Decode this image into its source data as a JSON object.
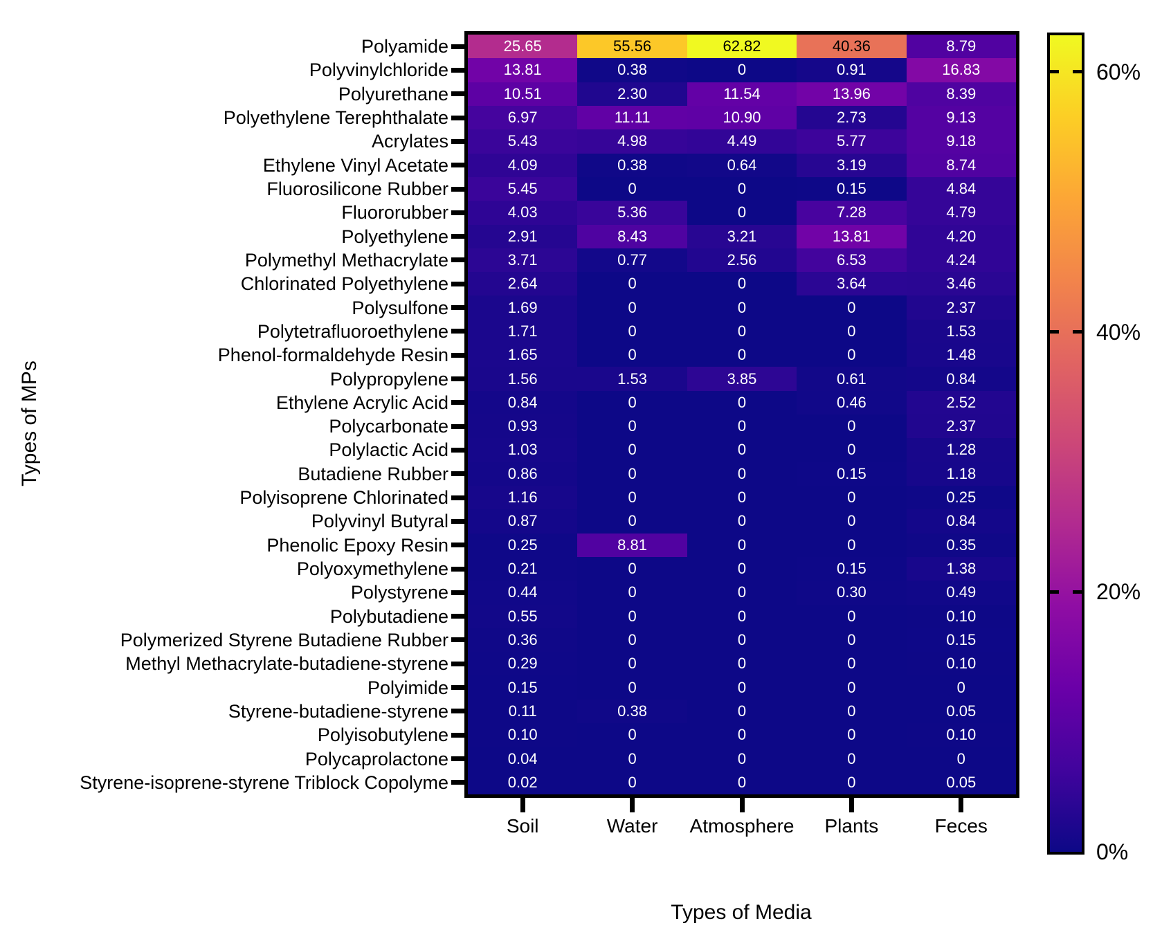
{
  "figure": {
    "x_axis_title": "Types of Media",
    "y_axis_title": "Types of MPs"
  },
  "colorbar": {
    "vmin": 0,
    "vmax": 62.82,
    "colormap": "plasma",
    "colormap_stops": [
      "#0d0887",
      "#41049d",
      "#6a00a8",
      "#8f0da4",
      "#b12a90",
      "#cc4778",
      "#e16462",
      "#f2844b",
      "#fca636",
      "#fcce25",
      "#f0f921"
    ],
    "tick_labels": [
      {
        "label": "60%",
        "value": 60
      },
      {
        "label": "40%",
        "value": 40
      },
      {
        "label": "20%",
        "value": 20
      },
      {
        "label": "0%",
        "value": 0
      }
    ]
  },
  "chart_data": {
    "type": "heatmap",
    "title": "",
    "xlabel": "Types of Media",
    "ylabel": "Types of MPs",
    "value_unit": "%",
    "color_scale": {
      "min": 0,
      "max": 62.82,
      "colormap": "plasma"
    },
    "legend_position": "right-colorbar",
    "columns": [
      "Soil",
      "Water",
      "Atmosphere",
      "Plants",
      "Feces"
    ],
    "rows": [
      "Polyamide",
      "Polyvinylchloride",
      "Polyurethane",
      "Polyethylene Terephthalate",
      "Acrylates",
      "Ethylene Vinyl Acetate",
      "Fluorosilicone Rubber",
      "Fluororubber",
      "Polyethylene",
      "Polymethyl Methacrylate",
      "Chlorinated Polyethylene",
      "Polysulfone",
      "Polytetrafluoroethylene",
      "Phenol-formaldehyde Resin",
      "Polypropylene",
      "Ethylene Acrylic Acid",
      "Polycarbonate",
      "Polylactic Acid",
      "Butadiene Rubber",
      "Polyisoprene Chlorinated",
      "Polyvinyl Butyral",
      "Phenolic Epoxy Resin",
      "Polyoxymethylene",
      "Polystyrene",
      "Polybutadiene",
      "Polymerized Styrene Butadiene Rubber",
      "Methyl Methacrylate-butadiene-styrene",
      "Polyimide",
      "Styrene-butadiene-styrene",
      "Polyisobutylene",
      "Polycaprolactone",
      "Styrene-isoprene-styrene Triblock Copolyme"
    ],
    "values": [
      [
        "25.65",
        "55.56",
        "62.82",
        "40.36",
        "8.79"
      ],
      [
        "13.81",
        "0.38",
        "0",
        "0.91",
        "16.83"
      ],
      [
        "10.51",
        "2.30",
        "11.54",
        "13.96",
        "8.39"
      ],
      [
        "6.97",
        "11.11",
        "10.90",
        "2.73",
        "9.13"
      ],
      [
        "5.43",
        "4.98",
        "4.49",
        "5.77",
        "9.18"
      ],
      [
        "4.09",
        "0.38",
        "0.64",
        "3.19",
        "8.74"
      ],
      [
        "5.45",
        "0",
        "0",
        "0.15",
        "4.84"
      ],
      [
        "4.03",
        "5.36",
        "0",
        "7.28",
        "4.79"
      ],
      [
        "2.91",
        "8.43",
        "3.21",
        "13.81",
        "4.20"
      ],
      [
        "3.71",
        "0.77",
        "2.56",
        "6.53",
        "4.24"
      ],
      [
        "2.64",
        "0",
        "0",
        "3.64",
        "3.46"
      ],
      [
        "1.69",
        "0",
        "0",
        "0",
        "2.37"
      ],
      [
        "1.71",
        "0",
        "0",
        "0",
        "1.53"
      ],
      [
        "1.65",
        "0",
        "0",
        "0",
        "1.48"
      ],
      [
        "1.56",
        "1.53",
        "3.85",
        "0.61",
        "0.84"
      ],
      [
        "0.84",
        "0",
        "0",
        "0.46",
        "2.52"
      ],
      [
        "0.93",
        "0",
        "0",
        "0",
        "2.37"
      ],
      [
        "1.03",
        "0",
        "0",
        "0",
        "1.28"
      ],
      [
        "0.86",
        "0",
        "0",
        "0.15",
        "1.18"
      ],
      [
        "1.16",
        "0",
        "0",
        "0",
        "0.25"
      ],
      [
        "0.87",
        "0",
        "0",
        "0",
        "0.84"
      ],
      [
        "0.25",
        "8.81",
        "0",
        "0",
        "0.35"
      ],
      [
        "0.21",
        "0",
        "0",
        "0.15",
        "1.38"
      ],
      [
        "0.44",
        "0",
        "0",
        "0.30",
        "0.49"
      ],
      [
        "0.55",
        "0",
        "0",
        "0",
        "0.10"
      ],
      [
        "0.36",
        "0",
        "0",
        "0",
        "0.15"
      ],
      [
        "0.29",
        "0",
        "0",
        "0",
        "0.10"
      ],
      [
        "0.15",
        "0",
        "0",
        "0",
        "0"
      ],
      [
        "0.11",
        "0.38",
        "0",
        "0",
        "0.05"
      ],
      [
        "0.10",
        "0",
        "0",
        "0",
        "0.10"
      ],
      [
        "0.04",
        "0",
        "0",
        "0",
        "0"
      ],
      [
        "0.02",
        "0",
        "0",
        "0",
        "0.05"
      ]
    ]
  }
}
